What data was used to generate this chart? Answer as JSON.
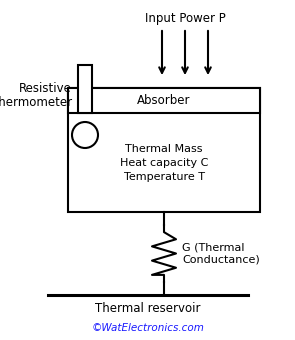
{
  "bg_color": "#ffffff",
  "line_color": "#000000",
  "text_color": "#000000",
  "blue_text_color": "#1a1aff",
  "input_power_text": "Input Power P",
  "resistive_thermometer_text": "Resistive\nThermometer",
  "absorber_text": "Absorber",
  "thermal_mass_text": "Thermal Mass\nHeat capacity C\nTemperature T",
  "g_thermal_text": "G (Thermal\nConductance)",
  "thermal_reservoir_text": "Thermal reservoir",
  "watermark_text": "©WatElectronics.com",
  "fig_width": 2.95,
  "fig_height": 3.4
}
